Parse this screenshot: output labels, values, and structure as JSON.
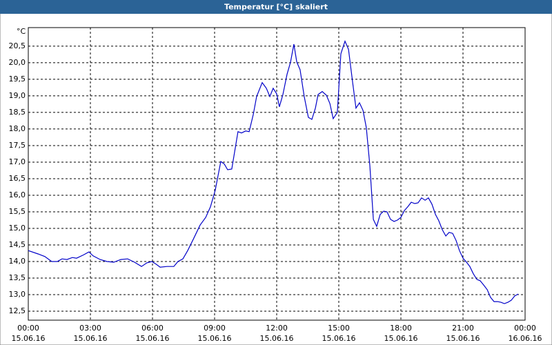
{
  "chart_data": {
    "type": "line",
    "title": "Temperatur [°C] skaliert",
    "y_unit": "°C",
    "color": "#0000c8",
    "grid": true,
    "x": [
      0,
      0.47,
      0.8,
      1.13,
      1.4,
      1.63,
      1.87,
      2.13,
      2.33,
      2.67,
      2.93,
      3.13,
      3.47,
      3.8,
      4.13,
      4.47,
      4.8,
      5.13,
      5.47,
      5.73,
      5.97,
      6.17,
      6.37,
      6.7,
      7.03,
      7.23,
      7.47,
      7.7,
      7.97,
      8.3,
      8.57,
      8.8,
      9.03,
      9.3,
      9.47,
      9.63,
      9.83,
      10.13,
      10.3,
      10.5,
      10.67,
      10.87,
      11.03,
      11.3,
      11.5,
      11.67,
      11.83,
      12.0,
      12.13,
      12.3,
      12.5,
      12.67,
      12.83,
      12.97,
      13.13,
      13.33,
      13.53,
      13.7,
      13.87,
      14.0,
      14.2,
      14.4,
      14.57,
      14.73,
      14.93,
      15.1,
      15.3,
      15.47,
      15.67,
      15.83,
      16.0,
      16.17,
      16.33,
      16.5,
      16.67,
      16.83,
      17.0,
      17.17,
      17.33,
      17.5,
      17.67,
      17.83,
      18.0,
      18.17,
      18.33,
      18.5,
      18.67,
      18.83,
      19.0,
      19.17,
      19.33,
      19.5,
      19.67,
      19.83,
      20.0,
      20.17,
      20.33,
      20.5,
      20.67,
      20.83,
      21.0,
      21.17,
      21.33,
      21.5,
      21.67,
      21.83,
      22.0,
      22.17,
      22.33,
      22.5,
      22.67,
      22.83,
      23.0,
      23.17,
      23.33,
      23.5,
      23.67
    ],
    "values": [
      14.33,
      14.23,
      14.15,
      14.0,
      14.0,
      14.08,
      14.06,
      14.12,
      14.1,
      14.2,
      14.29,
      14.17,
      14.06,
      14.0,
      13.98,
      14.06,
      14.08,
      13.98,
      13.85,
      13.96,
      14.0,
      13.92,
      13.83,
      13.85,
      13.85,
      14.0,
      14.08,
      14.33,
      14.67,
      15.1,
      15.33,
      15.65,
      16.15,
      17.02,
      16.94,
      16.77,
      16.79,
      17.92,
      17.88,
      17.94,
      17.92,
      18.44,
      18.98,
      19.4,
      19.23,
      18.98,
      19.23,
      19.06,
      18.67,
      19.04,
      19.65,
      20.02,
      20.56,
      20.02,
      19.79,
      18.98,
      18.35,
      18.29,
      18.63,
      19.04,
      19.13,
      19.02,
      18.77,
      18.31,
      18.5,
      20.27,
      20.65,
      20.4,
      19.4,
      18.63,
      18.79,
      18.56,
      18.04,
      16.9,
      15.27,
      15.06,
      15.42,
      15.52,
      15.5,
      15.27,
      15.21,
      15.25,
      15.33,
      15.54,
      15.65,
      15.79,
      15.75,
      15.77,
      15.92,
      15.85,
      15.92,
      15.73,
      15.42,
      15.23,
      14.96,
      14.77,
      14.88,
      14.85,
      14.63,
      14.33,
      14.1,
      13.98,
      13.85,
      13.63,
      13.46,
      13.42,
      13.29,
      13.15,
      12.92,
      12.79,
      12.79,
      12.77,
      12.73,
      12.77,
      12.83,
      12.96,
      13.02
    ],
    "xlim": [
      0,
      24
    ],
    "xticks": [
      {
        "value": 0,
        "label": "00:00"
      },
      {
        "value": 3,
        "label": "03:00"
      },
      {
        "value": 6,
        "label": "06:00"
      },
      {
        "value": 9,
        "label": "09:00"
      },
      {
        "value": 12,
        "label": "12:00"
      },
      {
        "value": 15,
        "label": "15:00"
      },
      {
        "value": 18,
        "label": "18:00"
      },
      {
        "value": 21,
        "label": "21:00"
      },
      {
        "value": 24,
        "label": "00:00"
      }
    ],
    "xtick_dates": [
      "15.06.16",
      "15.06.16",
      "15.06.16",
      "15.06.16",
      "15.06.16",
      "15.06.16",
      "15.06.16",
      "15.06.16",
      "16.06.16"
    ],
    "ylim": [
      12.23,
      21.06
    ],
    "yticks": [
      {
        "value": 12.5,
        "label": "12,5"
      },
      {
        "value": 13,
        "label": "13,0"
      },
      {
        "value": 13.5,
        "label": "13,5"
      },
      {
        "value": 14,
        "label": "14,0"
      },
      {
        "value": 14.5,
        "label": "14,5"
      },
      {
        "value": 15,
        "label": "15,0"
      },
      {
        "value": 15.5,
        "label": "15,5"
      },
      {
        "value": 16,
        "label": "16,0"
      },
      {
        "value": 16.5,
        "label": "16,5"
      },
      {
        "value": 17,
        "label": "17,0"
      },
      {
        "value": 17.5,
        "label": "17,5"
      },
      {
        "value": 18,
        "label": "18,0"
      },
      {
        "value": 18.5,
        "label": "18,5"
      },
      {
        "value": 19,
        "label": "19,0"
      },
      {
        "value": 19.5,
        "label": "19,5"
      },
      {
        "value": 20,
        "label": "20,0"
      },
      {
        "value": 20.5,
        "label": "20,5"
      }
    ]
  }
}
